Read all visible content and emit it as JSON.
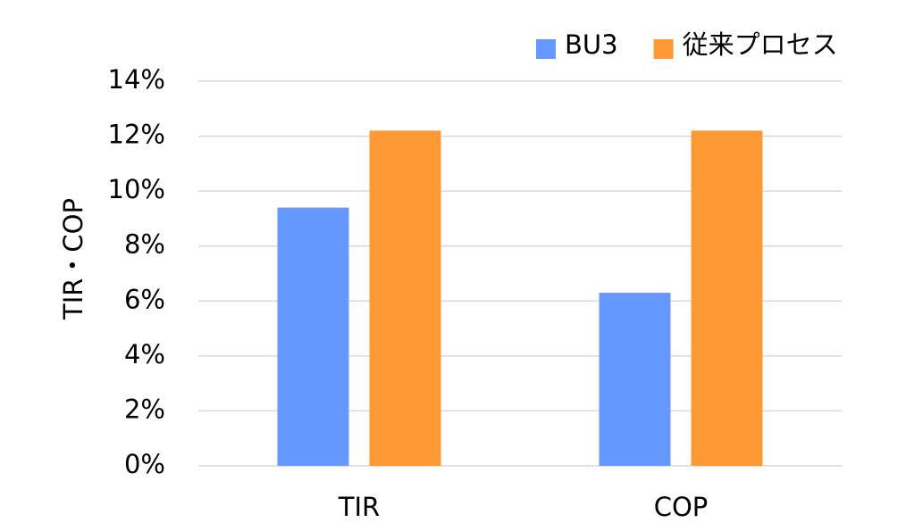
{
  "chart_data": {
    "type": "bar",
    "y_label": "TIR・COP",
    "categories": [
      "TIR",
      "COP"
    ],
    "series": [
      {
        "name": "BU3",
        "color": "#6699ff",
        "values": [
          9.4,
          6.3
        ]
      },
      {
        "name": "従来プロセス",
        "color": "#ff9933",
        "values": [
          12.2,
          12.2
        ]
      }
    ],
    "ylim": [
      0,
      14
    ],
    "yticks": [
      {
        "value": 0,
        "label": "0%"
      },
      {
        "value": 2,
        "label": "2%"
      },
      {
        "value": 4,
        "label": "4%"
      },
      {
        "value": 6,
        "label": "6%"
      },
      {
        "value": 8,
        "label": "8%"
      },
      {
        "value": 10,
        "label": "10%"
      },
      {
        "value": 12,
        "label": "12%"
      },
      {
        "value": 14,
        "label": "14%"
      }
    ],
    "grid": true,
    "legend": "top-right"
  }
}
